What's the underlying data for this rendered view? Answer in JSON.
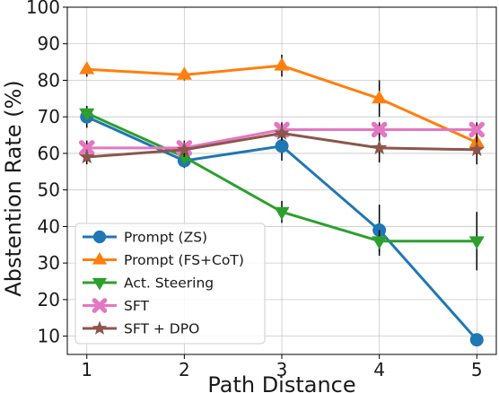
{
  "chart_data": {
    "type": "line",
    "xlabel": "Path Distance",
    "ylabel": "Abstention Rate (%)",
    "x": [
      1,
      2,
      3,
      4,
      5
    ],
    "xticks": [
      "1",
      "2",
      "3",
      "4",
      "5"
    ],
    "yticks": [
      "10",
      "20",
      "30",
      "40",
      "50",
      "60",
      "70",
      "80",
      "90",
      "100"
    ],
    "xlim": [
      0.8,
      5.2
    ],
    "ylim": [
      5,
      100
    ],
    "grid": true,
    "legend_position": "bottom-left",
    "series": [
      {
        "name": "Prompt (ZS)",
        "color": "#1f77b4",
        "marker": "circle",
        "values": [
          70,
          58,
          62,
          39,
          9
        ],
        "errors": [
          3,
          2,
          4,
          7,
          0
        ]
      },
      {
        "name": "Prompt (FS+CoT)",
        "color": "#ff7f0e",
        "marker": "triangle-up",
        "values": [
          83,
          81.5,
          84,
          75,
          63
        ],
        "errors": [
          2,
          1.5,
          3,
          5,
          3
        ]
      },
      {
        "name": "Act. Steering",
        "color": "#2ca02c",
        "marker": "triangle-down",
        "values": [
          71,
          59,
          44,
          36,
          36
        ],
        "errors": [
          2,
          2,
          3,
          3,
          8
        ]
      },
      {
        "name": "SFT",
        "color": "#e377c2",
        "marker": "x-cross",
        "values": [
          61.5,
          61.5,
          66.5,
          66.5,
          66.5
        ],
        "errors": [
          2,
          2,
          2,
          2,
          2
        ]
      },
      {
        "name": "SFT + DPO",
        "color": "#8c564b",
        "marker": "star",
        "values": [
          59,
          61,
          65.5,
          61.5,
          61
        ],
        "errors": [
          2,
          2,
          2,
          4,
          4
        ]
      }
    ]
  }
}
